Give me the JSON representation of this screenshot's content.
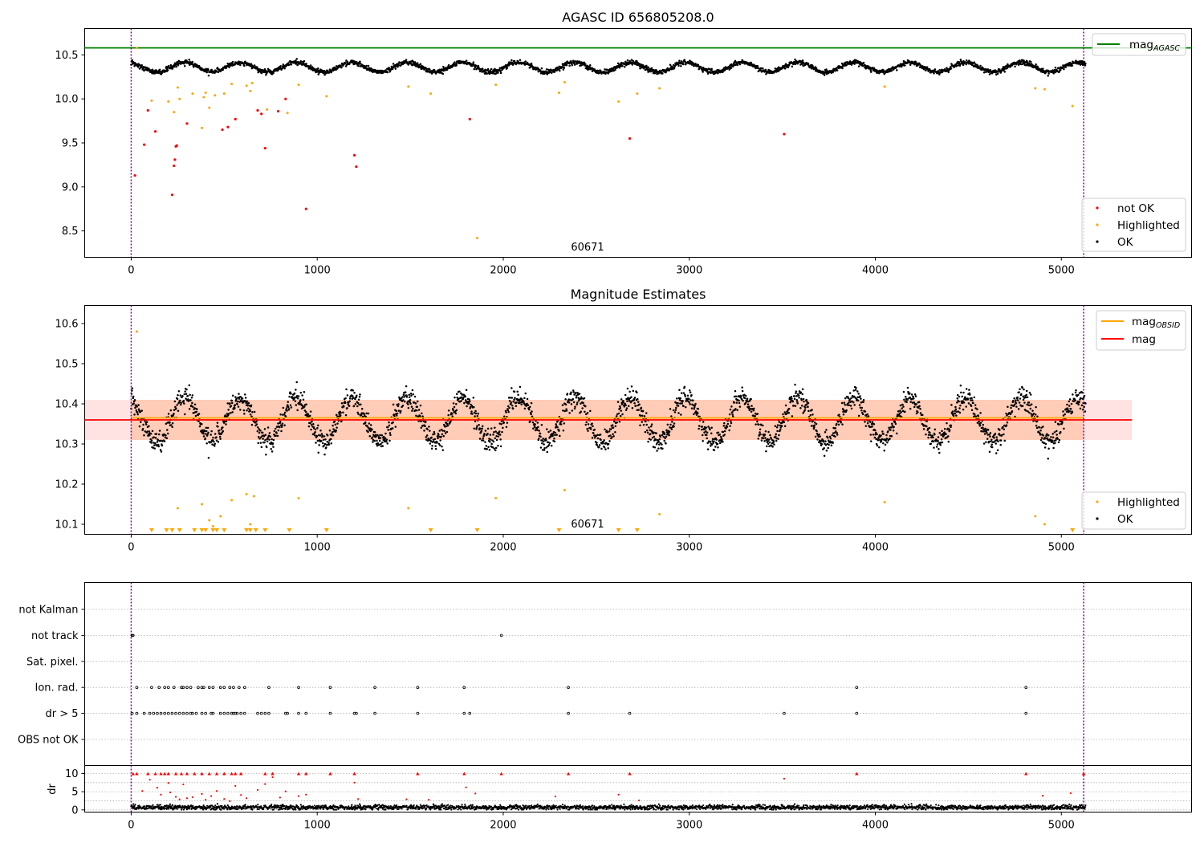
{
  "chart_data": [
    {
      "type": "scatter",
      "title": "AGASC ID 656805208.0",
      "xlim": [
        -250,
        5700
      ],
      "ylim": [
        8.2,
        10.8
      ],
      "xticks": [
        0,
        1000,
        2000,
        3000,
        4000,
        5000
      ],
      "yticks": [
        8.5,
        9.0,
        9.5,
        10.0,
        10.5
      ],
      "ytick_labels": [
        "8.5",
        "9.0",
        "9.5",
        "10.0",
        "10.5"
      ],
      "vlines": [
        0,
        5120
      ],
      "hline": {
        "name": "mag",
        "subscript": "AGASC",
        "value": 10.58,
        "color": "#008000"
      },
      "annotation": {
        "text": "60671",
        "x": 2560,
        "y": 8.28
      },
      "legend_top": [
        {
          "label": "mag",
          "subscript": "AGASC",
          "color": "#008000"
        }
      ],
      "legend_bottom": [
        {
          "label": "not OK",
          "color": "#ff0000"
        },
        {
          "label": "Highlighted",
          "color": "#ffa500"
        },
        {
          "label": "OK",
          "color": "#000000"
        }
      ],
      "series": [
        {
          "name": "OK",
          "color": "#000000",
          "model": {
            "x_range": [
              0,
              5130
            ],
            "mean": 10.36,
            "amplitude": 0.055,
            "period": 300,
            "phase": 0.3,
            "noise": 0.02,
            "count": 2600
          }
        },
        {
          "name": "Highlighted",
          "color": "#ffa500",
          "x": [
            30,
            110,
            200,
            230,
            250,
            260,
            330,
            380,
            390,
            400,
            420,
            450,
            500,
            540,
            620,
            640,
            650,
            680,
            730,
            840,
            900,
            1050,
            1490,
            1610,
            1860,
            1960,
            2300,
            2330,
            2620,
            2720,
            2840,
            4050,
            4860,
            4910,
            5060
          ],
          "y": [
            10.58,
            9.98,
            9.97,
            9.85,
            10.13,
            10.0,
            10.06,
            9.67,
            10.02,
            10.07,
            9.9,
            10.04,
            10.06,
            10.17,
            10.15,
            10.09,
            10.18,
            9.87,
            9.88,
            9.84,
            10.16,
            10.03,
            10.14,
            10.06,
            8.42,
            10.16,
            10.07,
            10.19,
            9.97,
            10.06,
            10.12,
            10.14,
            10.12,
            10.11,
            9.92
          ]
        },
        {
          "name": "not OK",
          "color": "#ff0000",
          "x": [
            20,
            70,
            90,
            130,
            220,
            230,
            235,
            240,
            245,
            300,
            490,
            520,
            560,
            680,
            700,
            720,
            790,
            830,
            940,
            1200,
            1210,
            1820,
            2680,
            3510
          ],
          "y": [
            9.13,
            9.48,
            9.87,
            9.63,
            8.91,
            9.24,
            9.31,
            9.46,
            9.47,
            9.72,
            9.65,
            9.68,
            9.77,
            9.87,
            9.83,
            9.44,
            9.86,
            10.0,
            8.75,
            9.36,
            9.23,
            9.77,
            9.55,
            9.6
          ]
        }
      ]
    },
    {
      "type": "scatter",
      "title": "Magnitude Estimates",
      "xlim": [
        -250,
        5700
      ],
      "ylim": [
        10.075,
        10.645
      ],
      "xticks": [
        0,
        1000,
        2000,
        3000,
        4000,
        5000
      ],
      "yticks": [
        10.1,
        10.2,
        10.3,
        10.4,
        10.5,
        10.6
      ],
      "ytick_labels": [
        "10.1",
        "10.2",
        "10.3",
        "10.4",
        "10.5",
        "10.6"
      ],
      "vlines": [
        0,
        5120
      ],
      "annotation": {
        "text": "60671",
        "x": 2560,
        "y": 10.095
      },
      "bands": [
        {
          "y": [
            10.31,
            10.41
          ],
          "x": [
            -250,
            5380
          ],
          "color": "#ffcccc",
          "opacity": 0.55
        },
        {
          "y": [
            10.31,
            10.41
          ],
          "x": [
            0,
            5120
          ],
          "color": "#ffb080",
          "opacity": 0.45
        }
      ],
      "lines": [
        {
          "name": "mag",
          "subscript": "OBSID",
          "value": 10.365,
          "x": [
            0,
            5120
          ],
          "color": "#ffa500"
        },
        {
          "name": "mag",
          "value": 10.36,
          "x": [
            -250,
            5380
          ],
          "color": "#ff0000"
        }
      ],
      "legend_top": [
        {
          "label": "mag",
          "subscript": "OBSID",
          "color": "#ffa500"
        },
        {
          "label": "mag",
          "color": "#ff0000"
        }
      ],
      "legend_bottom": [
        {
          "label": "Highlighted",
          "color": "#ffa500"
        },
        {
          "label": "OK",
          "color": "#000000"
        }
      ],
      "series": [
        {
          "name": "OK",
          "color": "#000000",
          "model": {
            "x_range": [
              0,
              5130
            ],
            "mean": 10.36,
            "amplitude": 0.055,
            "period": 300,
            "phase": 0.3,
            "noise": 0.02,
            "count": 2600
          }
        },
        {
          "name": "Highlighted",
          "color": "#ffa500",
          "x": [
            30,
            250,
            380,
            420,
            440,
            480,
            540,
            620,
            640,
            660,
            900,
            1490,
            1960,
            2330,
            2840,
            4050,
            4860,
            4910
          ],
          "y": [
            10.58,
            10.14,
            10.15,
            10.11,
            10.095,
            10.12,
            10.16,
            10.175,
            10.1,
            10.17,
            10.165,
            10.14,
            10.165,
            10.185,
            10.125,
            10.155,
            10.12,
            10.1
          ]
        },
        {
          "name": "Highlighted (below range)",
          "marker": "triangle-down",
          "color": "#ffa500",
          "x": [
            110,
            190,
            220,
            260,
            340,
            380,
            400,
            440,
            460,
            500,
            620,
            640,
            670,
            720,
            850,
            1050,
            1610,
            1860,
            2300,
            2620,
            2720,
            5060
          ],
          "y": [
            10.08,
            10.08,
            10.08,
            10.08,
            10.08,
            10.08,
            10.08,
            10.08,
            10.08,
            10.08,
            10.08,
            10.08,
            10.08,
            10.08,
            10.08,
            10.08,
            10.08,
            10.08,
            10.08,
            10.08,
            10.08,
            10.08
          ]
        }
      ]
    },
    {
      "type": "scatter",
      "title": "",
      "xlim": [
        -250,
        5700
      ],
      "categories": [
        "not Kalman",
        "not track",
        "Sat. pixel.",
        "Ion. rad.",
        "dr > 5",
        "OBS not OK"
      ],
      "vlines": [
        0,
        5120
      ],
      "series": [
        {
          "name": "not track",
          "color": "#000000",
          "x": [
            5,
            10,
            1990
          ]
        },
        {
          "name": "Ion. rad.",
          "color": "#000000",
          "x": [
            30,
            110,
            150,
            180,
            200,
            230,
            270,
            280,
            300,
            320,
            360,
            380,
            390,
            420,
            440,
            480,
            500,
            530,
            550,
            580,
            610,
            740,
            900,
            1070,
            1310,
            1540,
            1790,
            2350,
            3900,
            4810
          ]
        },
        {
          "name": "dr > 5",
          "color": "#000000",
          "x": [
            5,
            30,
            70,
            100,
            120,
            140,
            160,
            180,
            200,
            220,
            240,
            260,
            280,
            300,
            320,
            330,
            350,
            380,
            400,
            430,
            440,
            480,
            500,
            520,
            540,
            550,
            560,
            570,
            590,
            610,
            680,
            700,
            720,
            740,
            830,
            840,
            900,
            940,
            1070,
            1200,
            1210,
            1310,
            1540,
            1790,
            1820,
            2350,
            2680,
            3510,
            3900,
            4810
          ]
        }
      ]
    },
    {
      "type": "scatter",
      "title": "",
      "ylabel": "dr",
      "xlim": [
        -250,
        5700
      ],
      "ylim": [
        -0.6,
        12.2
      ],
      "xticks": [
        0,
        1000,
        2000,
        3000,
        4000,
        5000
      ],
      "yticks": [
        0,
        5,
        10
      ],
      "ytick_labels": [
        "0",
        "5",
        "10"
      ],
      "vlines": [
        0,
        5120
      ],
      "series": [
        {
          "name": "dr",
          "color": "#000000",
          "model": {
            "x_range": [
              0,
              5130
            ],
            "mean": 0.7,
            "noise": 0.45,
            "count": 2600
          }
        },
        {
          "name": "dr > 5",
          "color": "#ff0000",
          "x": [
            60,
            100,
            140,
            160,
            200,
            210,
            240,
            260,
            280,
            300,
            330,
            380,
            400,
            430,
            460,
            500,
            530,
            560,
            590,
            620,
            680,
            720,
            760,
            800,
            830,
            900,
            940,
            1200,
            1220,
            1480,
            1600,
            1800,
            1850,
            2280,
            2620,
            2730,
            3510,
            4900,
            5050
          ],
          "y": [
            5.2,
            8.3,
            6.1,
            4.2,
            7.4,
            4.8,
            3.6,
            2.9,
            7.0,
            3.2,
            3.5,
            4.4,
            2.8,
            3.8,
            5.2,
            3.0,
            2.4,
            6.6,
            4.1,
            3.2,
            5.5,
            7.1,
            9.0,
            3.4,
            5.1,
            3.8,
            4.2,
            7.5,
            3.0,
            2.9,
            2.8,
            6.2,
            4.5,
            3.7,
            4.2,
            2.6,
            8.6,
            3.9,
            4.6
          ]
        },
        {
          "name": "dr >= 10",
          "marker": "triangle-up",
          "color": "#ff0000",
          "x": [
            10,
            30,
            90,
            130,
            160,
            180,
            200,
            240,
            270,
            300,
            340,
            380,
            420,
            460,
            500,
            540,
            560,
            590,
            720,
            760,
            900,
            940,
            1070,
            1200,
            1540,
            1790,
            1990,
            2350,
            2680,
            3900,
            4810,
            5120
          ],
          "y": [
            10,
            10,
            10,
            10,
            10,
            10,
            10,
            10,
            10,
            10,
            10,
            10,
            10,
            10,
            10,
            10,
            10,
            10,
            10,
            10,
            10,
            10,
            10,
            10,
            10,
            10,
            10,
            10,
            10,
            10,
            10,
            10
          ]
        }
      ]
    }
  ]
}
